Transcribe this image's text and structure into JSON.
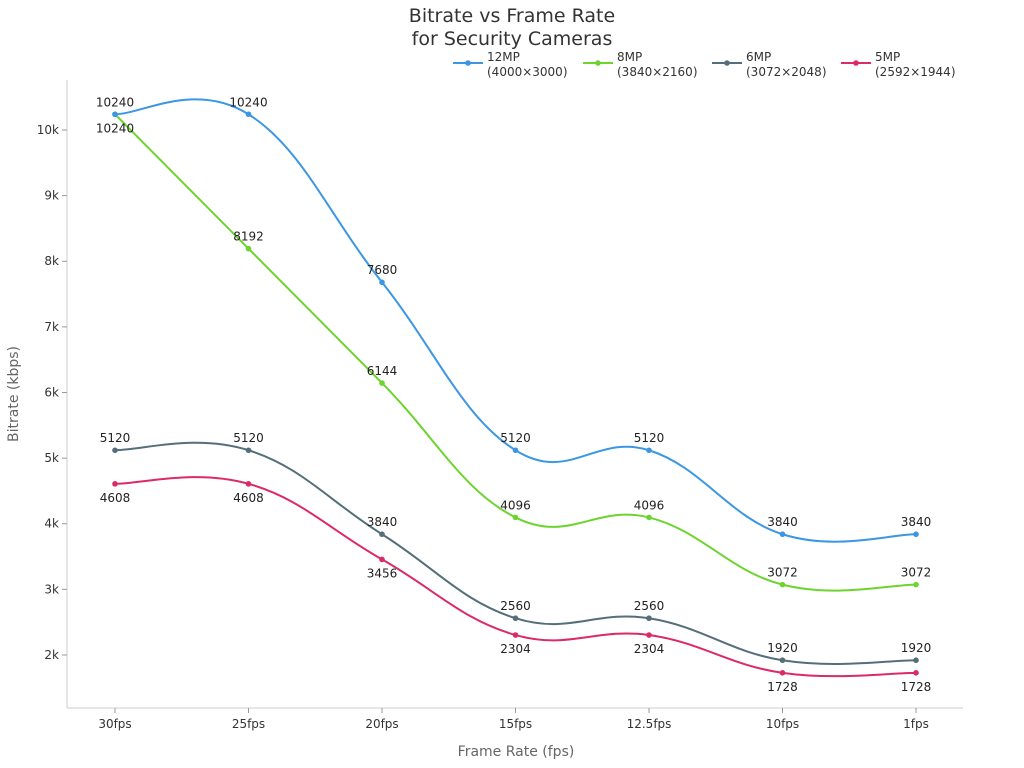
{
  "chart_data": {
    "type": "line",
    "title": [
      "Bitrate vs Frame Rate",
      "for Security Cameras"
    ],
    "xlabel": "Frame Rate (fps)",
    "ylabel": "Bitrate (kbps)",
    "categories": [
      "30fps",
      "25fps",
      "20fps",
      "15fps",
      "12.5fps",
      "10fps",
      "1fps"
    ],
    "yticks": [
      2000,
      3000,
      4000,
      5000,
      6000,
      7000,
      8000,
      9000,
      10000
    ],
    "ytick_labels": [
      "2k",
      "3k",
      "4k",
      "5k",
      "6k",
      "7k",
      "8k",
      "9k",
      "10k"
    ],
    "ylim": [
      1192,
      10762
    ],
    "grid": false,
    "legend_position": "top-right",
    "series": [
      {
        "name": [
          "12MP",
          "(4000×3000)"
        ],
        "color": "#3b97e3",
        "values": [
          10240,
          10240,
          7680,
          5120,
          5120,
          3840,
          3840
        ]
      },
      {
        "name": [
          "8MP",
          "(3840×2160)"
        ],
        "color": "#6dd42f",
        "values": [
          10240,
          8192,
          6144,
          4096,
          4096,
          3072,
          3072
        ]
      },
      {
        "name": [
          "6MP",
          "(3072×2048)"
        ],
        "color": "#546e7a",
        "values": [
          5120,
          5120,
          3840,
          2560,
          2560,
          1920,
          1920
        ]
      },
      {
        "name": [
          "5MP",
          "(2592×1944)"
        ],
        "color": "#dc2a66",
        "values": [
          4608,
          4608,
          3456,
          2304,
          2304,
          1728,
          1728
        ]
      }
    ]
  }
}
